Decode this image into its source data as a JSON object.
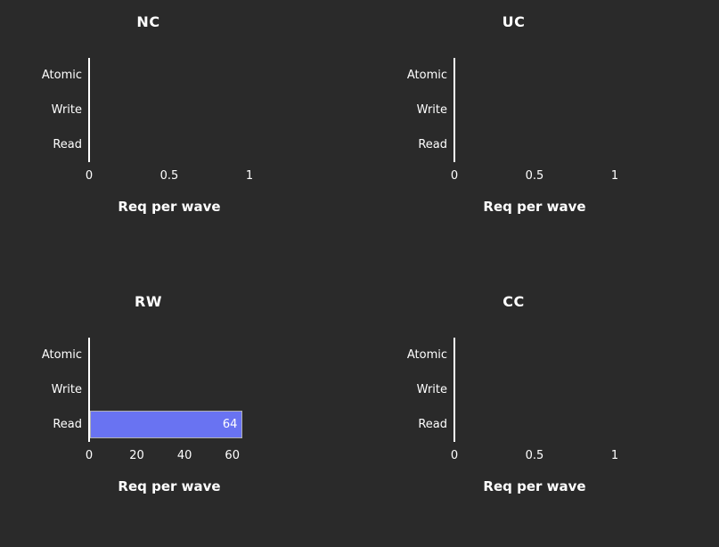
{
  "figure": {
    "background": "#2a2a2a",
    "text_color": "#ffffff",
    "axis_color": "#ffffff",
    "bar_fill": "#6973f2",
    "bar_border": "#b0b0b0"
  },
  "chart_data": [
    {
      "type": "bar",
      "orientation": "horizontal",
      "title": "NC",
      "categories": [
        "Atomic",
        "Write",
        "Read"
      ],
      "values": [
        0,
        0,
        0
      ],
      "xlabel": "Req per wave",
      "xlim": [
        0,
        1
      ],
      "xticks": [
        0,
        0.5,
        1
      ],
      "xtick_labels": [
        "0",
        "0.5",
        "1"
      ],
      "grid": false,
      "legend": "none"
    },
    {
      "type": "bar",
      "orientation": "horizontal",
      "title": "UC",
      "categories": [
        "Atomic",
        "Write",
        "Read"
      ],
      "values": [
        0,
        0,
        0
      ],
      "xlabel": "Req per wave",
      "xlim": [
        0,
        1
      ],
      "xticks": [
        0,
        0.5,
        1
      ],
      "xtick_labels": [
        "0",
        "0.5",
        "1"
      ],
      "grid": false,
      "legend": "none"
    },
    {
      "type": "bar",
      "orientation": "horizontal",
      "title": "RW",
      "categories": [
        "Atomic",
        "Write",
        "Read"
      ],
      "values": [
        0,
        0,
        64
      ],
      "xlabel": "Req per wave",
      "xlim": [
        0,
        67.2
      ],
      "xticks": [
        0,
        20,
        40,
        60
      ],
      "xtick_labels": [
        "0",
        "20",
        "40",
        "60"
      ],
      "grid": false,
      "legend": "none"
    },
    {
      "type": "bar",
      "orientation": "horizontal",
      "title": "CC",
      "categories": [
        "Atomic",
        "Write",
        "Read"
      ],
      "values": [
        0,
        0,
        0
      ],
      "xlabel": "Req per wave",
      "xlim": [
        0,
        1
      ],
      "xticks": [
        0,
        0.5,
        1
      ],
      "xtick_labels": [
        "0",
        "0.5",
        "1"
      ],
      "grid": false,
      "legend": "none"
    }
  ]
}
